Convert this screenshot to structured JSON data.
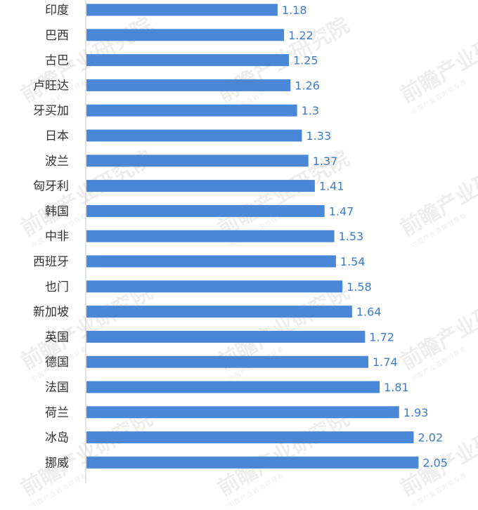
{
  "chart_data": {
    "type": "bar",
    "orientation": "horizontal",
    "categories": [
      "印度",
      "巴西",
      "古巴",
      "卢旺达",
      "牙买加",
      "日本",
      "波兰",
      "匈牙利",
      "韩国",
      "中非",
      "西班牙",
      "也门",
      "新加坡",
      "英国",
      "德国",
      "法国",
      "荷兰",
      "冰岛",
      "挪威"
    ],
    "values": [
      1.18,
      1.22,
      1.25,
      1.26,
      1.3,
      1.33,
      1.37,
      1.41,
      1.47,
      1.53,
      1.54,
      1.58,
      1.64,
      1.72,
      1.74,
      1.81,
      1.93,
      2.02,
      2.05
    ],
    "data_labels": [
      "1.18",
      "1.22",
      "1.25",
      "1.26",
      "1.3",
      "1.33",
      "1.37",
      "1.41",
      "1.47",
      "1.53",
      "1.54",
      "1.58",
      "1.64",
      "1.72",
      "1.74",
      "1.81",
      "1.93",
      "2.02",
      "2.05"
    ],
    "xlim": [
      0,
      2.3
    ],
    "bar_color": "#4a87d6",
    "label_color": "#3c7bc8",
    "category_color": "#333333",
    "axis_color": "#c8c8c8",
    "grid": false,
    "legend": "none"
  },
  "watermark": {
    "text": "前瞻产业研究院",
    "subtext": "中国产业咨询领导者"
  }
}
